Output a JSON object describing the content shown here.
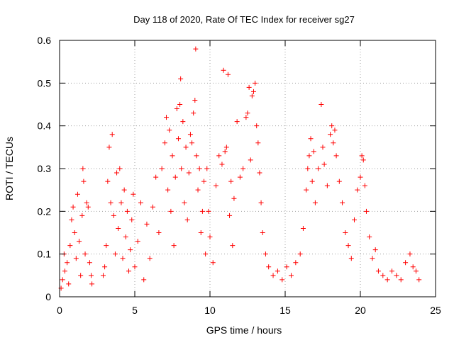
{
  "chart_data": {
    "type": "scatter",
    "title": "Day 118 of 2020, Rate Of TEC Index for receiver sg27",
    "xlabel": "GPS time / hours",
    "ylabel": "ROTI / TECUs",
    "xlim": [
      0,
      25
    ],
    "ylim": [
      0,
      0.6
    ],
    "xticks": [
      0,
      5,
      10,
      15,
      20,
      25
    ],
    "yticks": [
      0,
      0.1,
      0.2,
      0.3,
      0.4,
      0.5,
      0.6
    ],
    "xtick_labels": [
      "0",
      "5",
      "10",
      "15",
      "20",
      "25"
    ],
    "ytick_labels": [
      "0",
      "0.1",
      "0.2",
      "0.3",
      "0.4",
      "0.5",
      "0.6"
    ],
    "grid": true,
    "marker": "+",
    "color": "#ff0000",
    "series": [
      {
        "points": [
          [
            0.1,
            0.02
          ],
          [
            0.2,
            0.04
          ],
          [
            0.3,
            0.1
          ],
          [
            0.35,
            0.06
          ],
          [
            0.5,
            0.08
          ],
          [
            0.6,
            0.03
          ],
          [
            0.7,
            0.12
          ],
          [
            0.8,
            0.18
          ],
          [
            0.9,
            0.21
          ],
          [
            1.0,
            0.15
          ],
          [
            1.1,
            0.09
          ],
          [
            1.2,
            0.24
          ],
          [
            1.3,
            0.13
          ],
          [
            1.4,
            0.05
          ],
          [
            1.5,
            0.19
          ],
          [
            1.55,
            0.3
          ],
          [
            1.6,
            0.27
          ],
          [
            1.7,
            0.1
          ],
          [
            1.8,
            0.22
          ],
          [
            1.9,
            0.21
          ],
          [
            2.0,
            0.08
          ],
          [
            2.1,
            0.05
          ],
          [
            2.15,
            0.03
          ],
          [
            2.9,
            0.05
          ],
          [
            3.0,
            0.07
          ],
          [
            3.1,
            0.12
          ],
          [
            3.2,
            0.27
          ],
          [
            3.3,
            0.35
          ],
          [
            3.4,
            0.22
          ],
          [
            3.5,
            0.38
          ],
          [
            3.6,
            0.19
          ],
          [
            3.7,
            0.1
          ],
          [
            3.8,
            0.29
          ],
          [
            3.9,
            0.16
          ],
          [
            4.0,
            0.3
          ],
          [
            4.1,
            0.22
          ],
          [
            4.2,
            0.09
          ],
          [
            4.3,
            0.25
          ],
          [
            4.4,
            0.14
          ],
          [
            4.5,
            0.2
          ],
          [
            4.6,
            0.06
          ],
          [
            4.7,
            0.11
          ],
          [
            4.8,
            0.18
          ],
          [
            4.9,
            0.24
          ],
          [
            5.0,
            0.07
          ],
          [
            5.2,
            0.13
          ],
          [
            5.4,
            0.22
          ],
          [
            5.6,
            0.04
          ],
          [
            5.8,
            0.17
          ],
          [
            6.0,
            0.09
          ],
          [
            6.2,
            0.21
          ],
          [
            6.4,
            0.28
          ],
          [
            6.6,
            0.15
          ],
          [
            6.8,
            0.3
          ],
          [
            7.0,
            0.36
          ],
          [
            7.1,
            0.42
          ],
          [
            7.2,
            0.25
          ],
          [
            7.3,
            0.39
          ],
          [
            7.4,
            0.2
          ],
          [
            7.5,
            0.33
          ],
          [
            7.6,
            0.12
          ],
          [
            7.7,
            0.28
          ],
          [
            7.8,
            0.44
          ],
          [
            7.9,
            0.37
          ],
          [
            8.0,
            0.45
          ],
          [
            8.05,
            0.51
          ],
          [
            8.1,
            0.3
          ],
          [
            8.2,
            0.41
          ],
          [
            8.3,
            0.22
          ],
          [
            8.4,
            0.35
          ],
          [
            8.5,
            0.18
          ],
          [
            8.6,
            0.29
          ],
          [
            8.7,
            0.38
          ],
          [
            8.8,
            0.36
          ],
          [
            8.9,
            0.43
          ],
          [
            9.0,
            0.46
          ],
          [
            9.05,
            0.58
          ],
          [
            9.1,
            0.33
          ],
          [
            9.2,
            0.25
          ],
          [
            9.3,
            0.3
          ],
          [
            9.4,
            0.15
          ],
          [
            9.5,
            0.2
          ],
          [
            9.6,
            0.27
          ],
          [
            9.7,
            0.1
          ],
          [
            9.8,
            0.3
          ],
          [
            9.9,
            0.2
          ],
          [
            10.0,
            0.14
          ],
          [
            10.2,
            0.08
          ],
          [
            10.4,
            0.26
          ],
          [
            10.6,
            0.33
          ],
          [
            10.8,
            0.31
          ],
          [
            10.9,
            0.53
          ],
          [
            11.0,
            0.34
          ],
          [
            11.1,
            0.35
          ],
          [
            11.2,
            0.52
          ],
          [
            11.3,
            0.19
          ],
          [
            11.4,
            0.27
          ],
          [
            11.5,
            0.12
          ],
          [
            11.6,
            0.23
          ],
          [
            11.8,
            0.41
          ],
          [
            12.0,
            0.28
          ],
          [
            12.2,
            0.3
          ],
          [
            12.4,
            0.42
          ],
          [
            12.5,
            0.43
          ],
          [
            12.6,
            0.49
          ],
          [
            12.7,
            0.32
          ],
          [
            12.8,
            0.47
          ],
          [
            12.9,
            0.48
          ],
          [
            13.0,
            0.5
          ],
          [
            13.1,
            0.4
          ],
          [
            13.2,
            0.36
          ],
          [
            13.3,
            0.29
          ],
          [
            13.4,
            0.22
          ],
          [
            13.5,
            0.15
          ],
          [
            13.7,
            0.1
          ],
          [
            13.9,
            0.07
          ],
          [
            14.2,
            0.05
          ],
          [
            14.5,
            0.06
          ],
          [
            14.8,
            0.04
          ],
          [
            15.1,
            0.07
          ],
          [
            15.4,
            0.05
          ],
          [
            15.7,
            0.08
          ],
          [
            16.0,
            0.1
          ],
          [
            16.2,
            0.16
          ],
          [
            16.4,
            0.25
          ],
          [
            16.5,
            0.3
          ],
          [
            16.6,
            0.33
          ],
          [
            16.7,
            0.37
          ],
          [
            16.8,
            0.27
          ],
          [
            16.9,
            0.34
          ],
          [
            17.0,
            0.22
          ],
          [
            17.2,
            0.3
          ],
          [
            17.4,
            0.45
          ],
          [
            17.5,
            0.35
          ],
          [
            17.6,
            0.31
          ],
          [
            17.8,
            0.26
          ],
          [
            18.0,
            0.38
          ],
          [
            18.1,
            0.4
          ],
          [
            18.2,
            0.36
          ],
          [
            18.3,
            0.39
          ],
          [
            18.4,
            0.33
          ],
          [
            18.6,
            0.27
          ],
          [
            18.8,
            0.22
          ],
          [
            19.0,
            0.15
          ],
          [
            19.2,
            0.12
          ],
          [
            19.4,
            0.09
          ],
          [
            19.6,
            0.18
          ],
          [
            19.8,
            0.25
          ],
          [
            20.0,
            0.28
          ],
          [
            20.1,
            0.33
          ],
          [
            20.2,
            0.32
          ],
          [
            20.3,
            0.26
          ],
          [
            20.4,
            0.2
          ],
          [
            20.6,
            0.14
          ],
          [
            20.8,
            0.09
          ],
          [
            21.0,
            0.11
          ],
          [
            21.2,
            0.06
          ],
          [
            21.5,
            0.05
          ],
          [
            21.8,
            0.04
          ],
          [
            22.1,
            0.06
          ],
          [
            22.4,
            0.05
          ],
          [
            22.7,
            0.04
          ],
          [
            23.0,
            0.08
          ],
          [
            23.3,
            0.1
          ],
          [
            23.5,
            0.07
          ],
          [
            23.7,
            0.06
          ],
          [
            23.9,
            0.04
          ]
        ]
      }
    ]
  }
}
